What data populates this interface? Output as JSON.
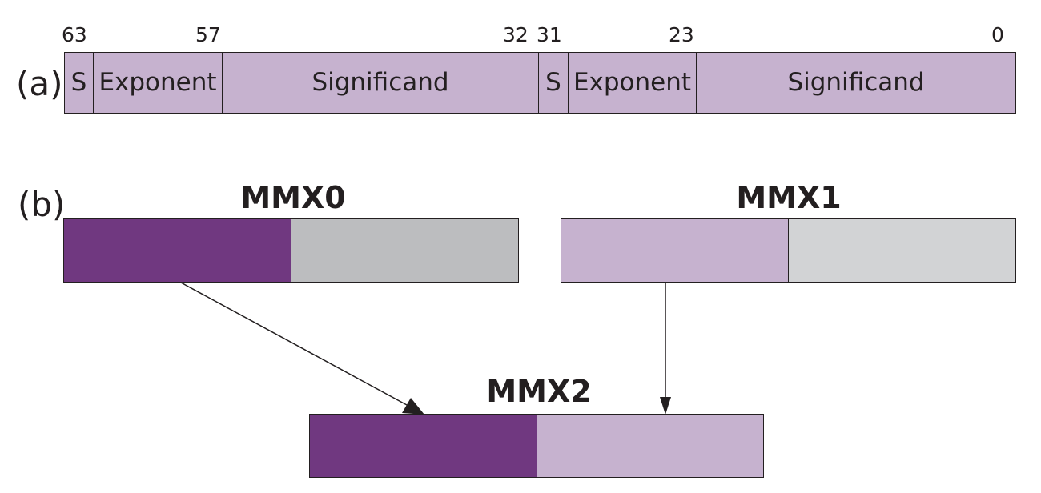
{
  "part_a": {
    "label": "(a)",
    "bit_labels": [
      "63",
      "57",
      "32",
      "31",
      "23",
      "0"
    ],
    "fields": [
      "S",
      "Exponent",
      "Significand",
      "S",
      "Exponent",
      "Significand"
    ]
  },
  "part_b": {
    "label": "(b)",
    "registers": [
      {
        "name": "MMX0",
        "colors": {
          "high": "#703880",
          "low": "#bcbdbf"
        }
      },
      {
        "name": "MMX1",
        "colors": {
          "high": "#c6b2cf",
          "low": "#d2d3d5"
        }
      },
      {
        "name": "MMX2",
        "colors": {
          "high": "#703880",
          "low": "#c6b2cf"
        }
      }
    ]
  },
  "colors": {
    "field_fill": "#c6b2cf",
    "stroke": "#231f20"
  }
}
